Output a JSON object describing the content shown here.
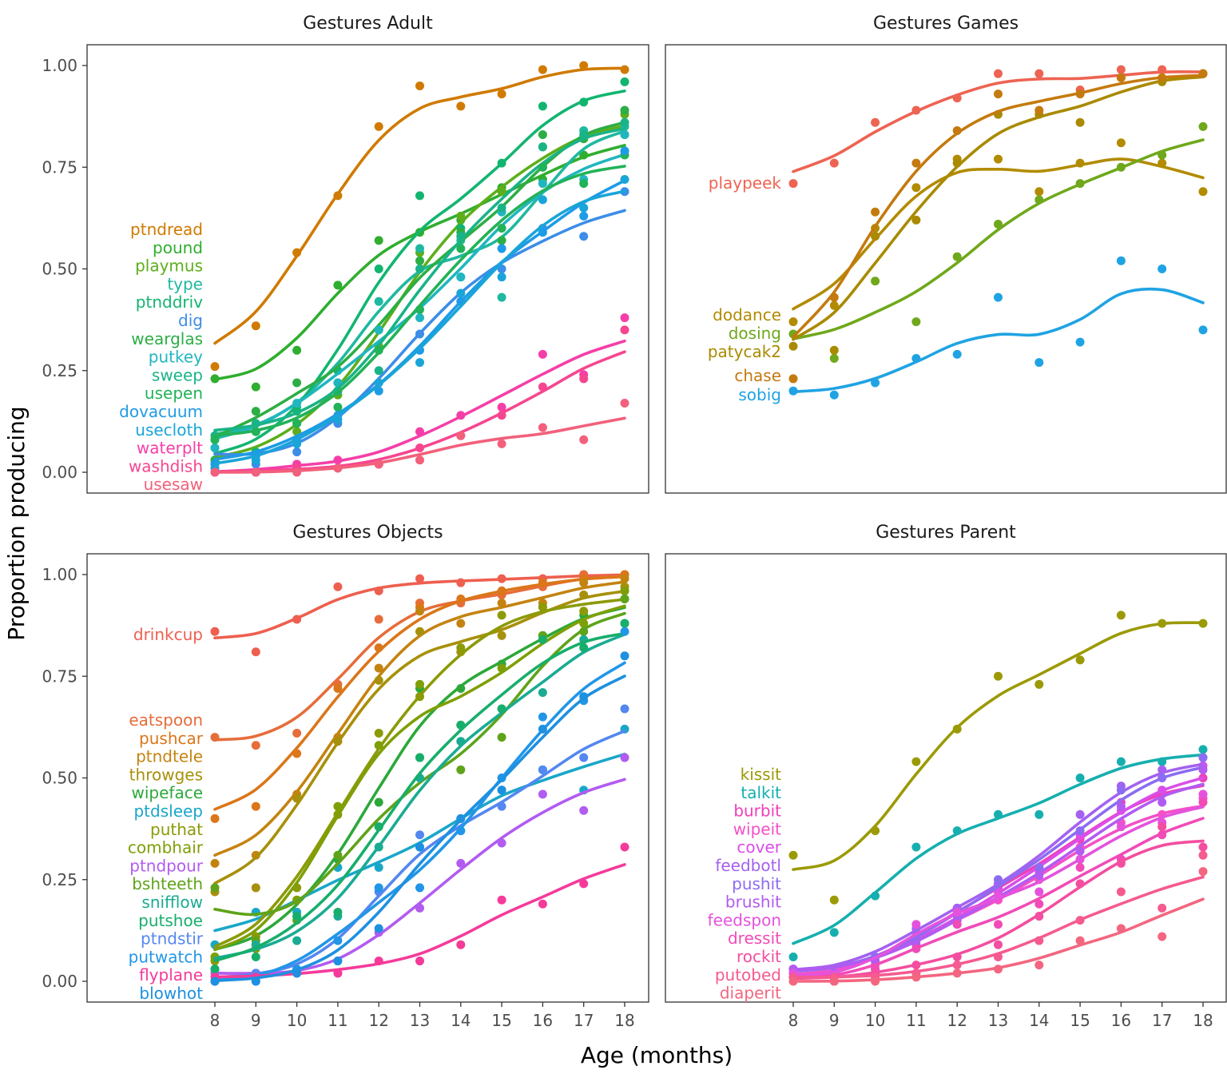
{
  "chart_data": {
    "type": "line",
    "xlabel": "Age (months)",
    "ylabel": "Proportion producing",
    "x_ticks": [
      8,
      9,
      10,
      11,
      12,
      13,
      14,
      15,
      16,
      17,
      18
    ],
    "y_ticks": [
      "0.00",
      "0.25",
      "0.50",
      "0.75",
      "1.00"
    ],
    "xlim": [
      8,
      18
    ],
    "ylim": [
      0,
      1
    ],
    "grid": false,
    "facets": [
      {
        "title": "Gestures Adult",
        "series": [
          {
            "name": "ptndread",
            "color": "#D07A00",
            "values": [
              0.26,
              0.36,
              0.54,
              0.68,
              0.85,
              0.95,
              0.9,
              0.93,
              0.99,
              1.0,
              0.99
            ]
          },
          {
            "name": "pound",
            "color": "#2FAE2F",
            "values": [
              0.23,
              0.21,
              0.3,
              0.46,
              0.57,
              0.59,
              0.62,
              0.7,
              0.72,
              0.78,
              0.83
            ]
          },
          {
            "name": "playmus",
            "color": "#5DAE1A",
            "values": [
              0.02,
              0.05,
              0.1,
              0.19,
              0.31,
              0.54,
              0.63,
              0.69,
              0.8,
              0.82,
              0.88
            ]
          },
          {
            "name": "type",
            "color": "#1FB8A0",
            "values": [
              0.08,
              0.1,
              0.16,
              0.22,
              0.42,
              0.55,
              0.57,
              0.43,
              0.75,
              0.84,
              0.85
            ]
          },
          {
            "name": "ptnddriv",
            "color": "#12B570",
            "values": [
              0.03,
              0.05,
              0.15,
              0.25,
              0.5,
              0.68,
              0.6,
              0.76,
              0.9,
              0.91,
              0.96
            ]
          },
          {
            "name": "dig",
            "color": "#3C8DE8",
            "values": [
              0.06,
              0.02,
              0.05,
              0.12,
              0.22,
              0.34,
              0.48,
              0.5,
              0.6,
              0.58,
              0.69
            ]
          },
          {
            "name": "wearglas",
            "color": "#2CAE44",
            "values": [
              0.03,
              0.15,
              0.22,
              0.2,
              0.35,
              0.52,
              0.59,
              0.57,
              0.83,
              0.82,
              0.89
            ]
          },
          {
            "name": "putkey",
            "color": "#20B6C0",
            "values": [
              0.06,
              0.1,
              0.17,
              0.22,
              0.35,
              0.38,
              0.48,
              0.64,
              0.71,
              0.72,
              0.83
            ]
          },
          {
            "name": "sweep",
            "color": "#19B388",
            "values": [
              0.09,
              0.12,
              0.12,
              0.2,
              0.25,
              0.5,
              0.58,
              0.65,
              0.8,
              0.83,
              0.86
            ]
          },
          {
            "name": "usepen",
            "color": "#22B257",
            "values": [
              0.08,
              0.1,
              0.12,
              0.16,
              0.3,
              0.4,
              0.55,
              0.6,
              0.75,
              0.71,
              0.78
            ]
          },
          {
            "name": "dovacuum",
            "color": "#1E9BE6",
            "values": [
              0.02,
              0.04,
              0.08,
              0.14,
              0.2,
              0.3,
              0.42,
              0.55,
              0.59,
              0.63,
              0.79
            ]
          },
          {
            "name": "usecloth",
            "color": "#19A5D8",
            "values": [
              0.01,
              0.03,
              0.07,
              0.13,
              0.22,
              0.27,
              0.44,
              0.48,
              0.67,
              0.65,
              0.72
            ]
          },
          {
            "name": "waterplt",
            "color": "#F43FA8",
            "values": [
              0.0,
              0.0,
              0.02,
              0.03,
              0.02,
              0.1,
              0.14,
              0.16,
              0.29,
              0.24,
              0.38
            ]
          },
          {
            "name": "washdish",
            "color": "#F64690",
            "values": [
              0.0,
              0.0,
              0.01,
              0.01,
              0.02,
              0.06,
              0.09,
              0.14,
              0.21,
              0.23,
              0.35
            ]
          },
          {
            "name": "usesaw",
            "color": "#F2607B",
            "values": [
              0.0,
              0.0,
              0.0,
              0.01,
              0.02,
              0.03,
              0.09,
              0.07,
              0.11,
              0.08,
              0.17
            ]
          }
        ]
      },
      {
        "title": "Gestures Games",
        "series": [
          {
            "name": "playpeek",
            "color": "#EE6352",
            "values": [
              0.71,
              0.76,
              0.86,
              0.89,
              0.92,
              0.98,
              0.98,
              0.94,
              0.99,
              0.99,
              0.98
            ]
          },
          {
            "name": "dodance",
            "color": "#B28B00",
            "values": [
              0.37,
              0.41,
              0.6,
              0.7,
              0.77,
              0.77,
              0.69,
              0.76,
              0.81,
              0.76,
              0.69
            ]
          },
          {
            "name": "dosing",
            "color": "#6FA81B",
            "values": [
              0.34,
              0.28,
              0.47,
              0.37,
              0.53,
              0.61,
              0.67,
              0.71,
              0.75,
              0.78,
              0.85
            ]
          },
          {
            "name": "patycak2",
            "color": "#A98A00",
            "values": [
              0.31,
              0.3,
              0.58,
              0.62,
              0.76,
              0.88,
              0.88,
              0.86,
              0.97,
              0.96,
              0.98
            ]
          },
          {
            "name": "chase",
            "color": "#C47A0E",
            "values": [
              0.23,
              0.43,
              0.64,
              0.76,
              0.84,
              0.93,
              0.89,
              0.93,
              0.97,
              0.97,
              0.98
            ]
          },
          {
            "name": "sobig",
            "color": "#1FA3E3",
            "values": [
              0.2,
              0.19,
              0.22,
              0.28,
              0.29,
              0.43,
              0.27,
              0.32,
              0.52,
              0.5,
              0.35
            ]
          }
        ]
      },
      {
        "title": "Gestures Objects",
        "series": [
          {
            "name": "drinkcup",
            "color": "#EE5F4F",
            "values": [
              0.86,
              0.81,
              0.89,
              0.97,
              0.96,
              0.99,
              0.98,
              0.99,
              0.99,
              1.0,
              1.0
            ]
          },
          {
            "name": "eatspoon",
            "color": "#E66D3A",
            "values": [
              0.6,
              0.58,
              0.61,
              0.73,
              0.89,
              0.93,
              0.93,
              0.95,
              0.97,
              1.0,
              1.0
            ]
          },
          {
            "name": "pushcar",
            "color": "#DB7619",
            "values": [
              0.4,
              0.43,
              0.56,
              0.72,
              0.82,
              0.92,
              0.94,
              0.96,
              0.98,
              0.99,
              1.0
            ]
          },
          {
            "name": "ptndtele",
            "color": "#C48310",
            "values": [
              0.29,
              0.31,
              0.46,
              0.6,
              0.77,
              0.91,
              0.88,
              0.93,
              0.93,
              0.98,
              0.99
            ]
          },
          {
            "name": "throwges",
            "color": "#A7900B",
            "values": [
              0.22,
              0.23,
              0.45,
              0.59,
              0.74,
              0.86,
              0.81,
              0.85,
              0.92,
              0.95,
              0.97
            ]
          },
          {
            "name": "wipeface",
            "color": "#2CA83A",
            "values": [
              0.06,
              0.09,
              0.16,
              0.3,
              0.44,
              0.72,
              0.72,
              0.78,
              0.85,
              0.9,
              0.94
            ]
          },
          {
            "name": "ptdsleep",
            "color": "#19A7C8",
            "values": [
              0.09,
              0.17,
              0.17,
              0.28,
              0.28,
              0.33,
              0.4,
              0.47,
              0.52,
              0.47,
              0.62
            ]
          },
          {
            "name": "puthat",
            "color": "#8C9A07",
            "values": [
              0.05,
              0.11,
              0.23,
              0.41,
              0.61,
              0.7,
              0.82,
              0.9,
              0.92,
              0.91,
              0.96
            ]
          },
          {
            "name": "combhair",
            "color": "#7E9F07",
            "values": [
              0.06,
              0.08,
              0.2,
              0.43,
              0.58,
              0.73,
              0.63,
              0.77,
              0.85,
              0.88,
              0.96
            ]
          },
          {
            "name": "ptndpour",
            "color": "#B25BF0",
            "values": [
              0.02,
              0.02,
              0.02,
              0.02,
              0.12,
              0.18,
              0.29,
              0.34,
              0.46,
              0.42,
              0.55
            ]
          },
          {
            "name": "bshteeth",
            "color": "#5FA31A",
            "values": [
              0.23,
              0.1,
              0.15,
              0.31,
              0.38,
              0.55,
              0.52,
              0.6,
              0.85,
              0.86,
              0.94
            ]
          },
          {
            "name": "snifflow",
            "color": "#1AAB93",
            "values": [
              0.03,
              0.09,
              0.1,
              0.16,
              0.33,
              0.5,
              0.59,
              0.67,
              0.71,
              0.84,
              0.88
            ]
          },
          {
            "name": "putshoe",
            "color": "#17AE6B",
            "values": [
              0.03,
              0.06,
              0.16,
              0.17,
              0.38,
              0.55,
              0.63,
              0.67,
              0.84,
              0.82,
              0.88
            ]
          },
          {
            "name": "ptndstir",
            "color": "#5487F0",
            "values": [
              0.0,
              0.02,
              0.03,
              0.05,
              0.22,
              0.36,
              0.37,
              0.43,
              0.52,
              0.55,
              0.67
            ]
          },
          {
            "name": "putwatch",
            "color": "#2196E8",
            "values": [
              0.0,
              0.0,
              0.03,
              0.1,
              0.23,
              0.23,
              0.37,
              0.5,
              0.65,
              0.69,
              0.86
            ]
          },
          {
            "name": "flyplane",
            "color": "#F53A9A",
            "values": [
              0.01,
              0.01,
              0.02,
              0.02,
              0.05,
              0.05,
              0.09,
              0.2,
              0.19,
              0.24,
              0.33
            ]
          },
          {
            "name": "blowhot",
            "color": "#1E90E0",
            "values": [
              0.0,
              0.0,
              0.02,
              0.05,
              0.13,
              0.33,
              0.4,
              0.47,
              0.62,
              0.7,
              0.8
            ]
          }
        ]
      },
      {
        "title": "Gestures Parent",
        "series": [
          {
            "name": "kissit",
            "color": "#9B9A06",
            "values": [
              0.31,
              0.2,
              0.37,
              0.54,
              0.62,
              0.75,
              0.73,
              0.79,
              0.9,
              0.88,
              0.88
            ]
          },
          {
            "name": "talkit",
            "color": "#16AFAF",
            "values": [
              0.06,
              0.12,
              0.21,
              0.33,
              0.37,
              0.41,
              0.41,
              0.5,
              0.54,
              0.54,
              0.57
            ]
          },
          {
            "name": "burbit",
            "color": "#F03FB8",
            "values": [
              0.03,
              0.02,
              0.05,
              0.1,
              0.18,
              0.23,
              0.28,
              0.35,
              0.44,
              0.46,
              0.5
            ]
          },
          {
            "name": "wipeit",
            "color": "#F450C8",
            "values": [
              0.02,
              0.01,
              0.04,
              0.12,
              0.14,
              0.2,
              0.25,
              0.33,
              0.39,
              0.41,
              0.45
            ]
          },
          {
            "name": "cover",
            "color": "#DA4EE8",
            "values": [
              0.03,
              0.02,
              0.05,
              0.1,
              0.15,
              0.22,
              0.27,
              0.36,
              0.42,
              0.47,
              0.53
            ]
          },
          {
            "name": "feedbotl",
            "color": "#A461F0",
            "values": [
              0.03,
              0.02,
              0.06,
              0.13,
              0.18,
              0.24,
              0.28,
              0.41,
              0.48,
              0.52,
              0.55
            ]
          },
          {
            "name": "pushit",
            "color": "#8C6CF2",
            "values": [
              0.03,
              0.01,
              0.06,
              0.1,
              0.16,
              0.25,
              0.28,
              0.37,
              0.47,
              0.5,
              0.55
            ]
          },
          {
            "name": "brushit",
            "color": "#B15BF2",
            "values": [
              0.03,
              0.02,
              0.05,
              0.09,
              0.15,
              0.21,
              0.26,
              0.32,
              0.43,
              0.44,
              0.52
            ]
          },
          {
            "name": "feedspon",
            "color": "#E452DD",
            "values": [
              0.02,
              0.0,
              0.03,
              0.14,
              0.17,
              0.21,
              0.22,
              0.3,
              0.38,
              0.39,
              0.46
            ]
          },
          {
            "name": "dressit",
            "color": "#F14BB8",
            "values": [
              0.01,
              0.0,
              0.03,
              0.08,
              0.14,
              0.14,
              0.19,
              0.28,
              0.3,
              0.36,
              0.44
            ]
          },
          {
            "name": "rockit",
            "color": "#F34EA0",
            "values": [
              0.01,
              0.0,
              0.02,
              0.04,
              0.06,
              0.09,
              0.16,
              0.24,
              0.29,
              0.38,
              0.33
            ]
          },
          {
            "name": "putobed",
            "color": "#F55A90",
            "values": [
              0.01,
              0.01,
              0.01,
              0.02,
              0.04,
              0.06,
              0.1,
              0.15,
              0.22,
              0.18,
              0.31
            ]
          },
          {
            "name": "diaperit",
            "color": "#F36680",
            "values": [
              0.0,
              0.0,
              0.0,
              0.01,
              0.02,
              0.03,
              0.04,
              0.1,
              0.13,
              0.11,
              0.27
            ]
          }
        ]
      }
    ]
  }
}
